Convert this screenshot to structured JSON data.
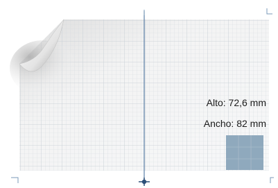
{
  "labels": {
    "height": "Alto: 72,6 mm",
    "width": "Ancho: 82 mm"
  }
}
